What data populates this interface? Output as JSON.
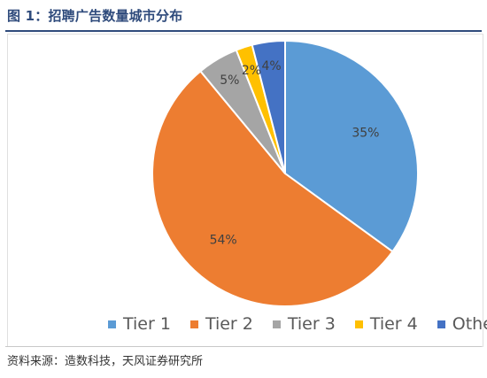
{
  "page": {
    "title": "图 1：招聘广告数量城市分布",
    "source": "资料来源：造数科技，天风证券研究所"
  },
  "chart_data": {
    "type": "pie",
    "title": "",
    "categories": [
      "Tier 1",
      "Tier 2",
      "Tier 3",
      "Tier 4",
      "Other"
    ],
    "values": [
      35,
      54,
      5,
      2,
      4
    ],
    "data_labels": [
      "35%",
      "54%",
      "5%",
      "2%",
      "4%"
    ],
    "colors": [
      "#5b9bd5",
      "#ed7d31",
      "#a5a5a5",
      "#ffc000",
      "#4472c4"
    ],
    "legend_position": "bottom"
  }
}
